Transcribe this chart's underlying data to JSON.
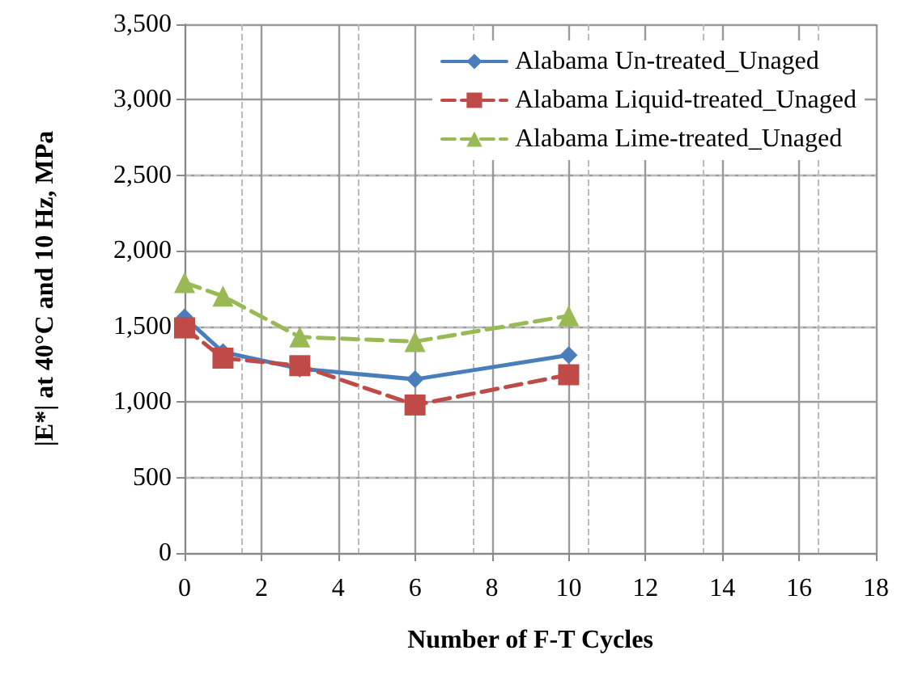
{
  "chart_data": {
    "type": "line",
    "xlabel": "Number of F-T Cycles",
    "ylabel": "|E*| at 40°C and 10 Hz, MPa",
    "x": [
      0,
      1,
      3,
      6,
      10
    ],
    "series": [
      {
        "name": "Alabama Un-treated_Unaged",
        "color": "#4a7ebb",
        "marker": "diamond",
        "line_style": "solid",
        "values": [
          1560,
          1330,
          1220,
          1150,
          1310
        ]
      },
      {
        "name": "Alabama Liquid-treated_Unaged",
        "color": "#be4b48",
        "marker": "square",
        "line_style": "dashed",
        "values": [
          1490,
          1290,
          1240,
          980,
          1180
        ]
      },
      {
        "name": "Alabama Lime-treated_Unaged",
        "color": "#98b954",
        "marker": "triangle",
        "line_style": "dashed",
        "values": [
          1790,
          1700,
          1430,
          1400,
          1570
        ]
      }
    ],
    "xlim": [
      0,
      18
    ],
    "xticks": [
      0,
      2,
      4,
      6,
      8,
      10,
      12,
      14,
      16,
      18
    ],
    "ylim": [
      0,
      3500
    ],
    "yticks": [
      {
        "value": 0,
        "label": "0"
      },
      {
        "value": 500,
        "label": "500"
      },
      {
        "value": 1000,
        "label": "1,000"
      },
      {
        "value": 1500,
        "label": "1,500"
      },
      {
        "value": 2000,
        "label": "2,000"
      },
      {
        "value": 2500,
        "label": "2,500"
      },
      {
        "value": 3000,
        "label": "3,000"
      },
      {
        "value": 3500,
        "label": "3,500"
      }
    ],
    "grid": true,
    "legend": "top right"
  }
}
